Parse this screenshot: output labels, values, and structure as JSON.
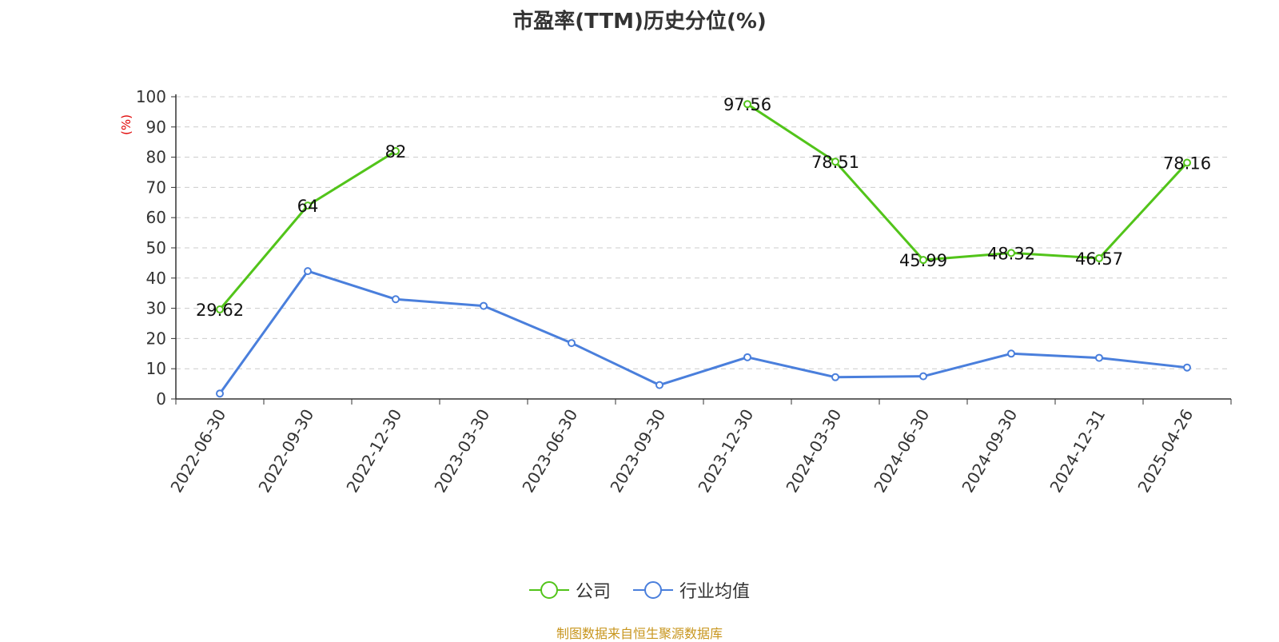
{
  "chart_data": {
    "type": "line",
    "title": "市盈率(TTM)历史分位(%)",
    "ylabel": "(%)",
    "xlabel": "",
    "ylim": [
      0,
      100
    ],
    "yticks": [
      0,
      10,
      20,
      30,
      40,
      50,
      60,
      70,
      80,
      90,
      100
    ],
    "grid": true,
    "legend_position": "bottom",
    "categories": [
      "2022-06-30",
      "2022-09-30",
      "2022-12-30",
      "2023-03-30",
      "2023-06-30",
      "2023-09-30",
      "2023-12-30",
      "2024-03-30",
      "2024-06-30",
      "2024-09-30",
      "2024-12-31",
      "2025-04-26"
    ],
    "series": [
      {
        "name": "公司",
        "color": "#52c41a",
        "values": [
          29.62,
          64,
          82,
          null,
          null,
          null,
          97.56,
          78.51,
          45.99,
          48.32,
          46.57,
          78.16
        ],
        "labels": [
          "29.62",
          "64",
          "82",
          "",
          "",
          "",
          "97.56",
          "78.51",
          "45.99",
          "48.32",
          "46.57",
          "78.16"
        ],
        "show_labels": true
      },
      {
        "name": "行业均值",
        "color": "#4a7fdc",
        "values": [
          1.8,
          42.3,
          33,
          30.8,
          18.5,
          4.6,
          13.8,
          7.2,
          7.5,
          15,
          13.6,
          10.4
        ],
        "show_labels": false
      }
    ]
  },
  "legend": {
    "items": [
      {
        "label": "公司",
        "color": "#52c41a"
      },
      {
        "label": "行业均值",
        "color": "#4a7fdc"
      }
    ]
  },
  "footer": {
    "source": "制图数据来自恒生聚源数据库"
  }
}
